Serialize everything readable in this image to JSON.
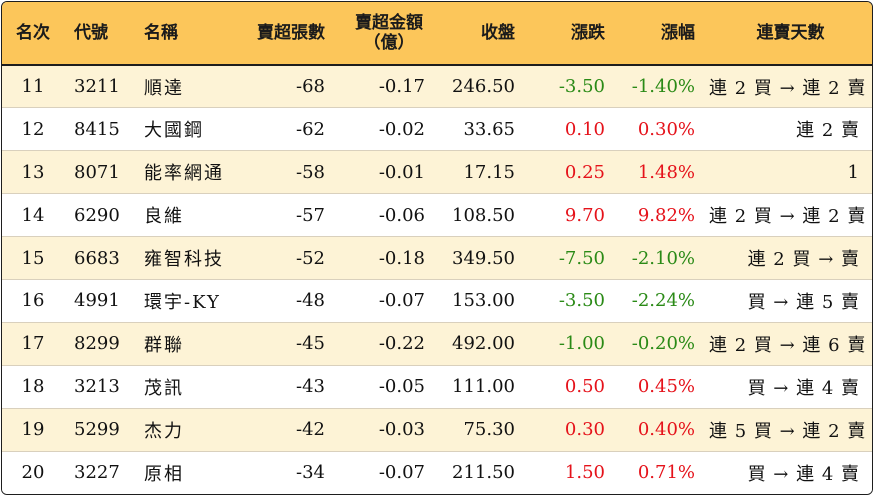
{
  "headers": {
    "rank": "名次",
    "code": "代號",
    "name": "名稱",
    "sell_lots": "賣超張數",
    "sell_amount_line1": "賣超金額",
    "sell_amount_line2": "（億）",
    "close": "收盤",
    "change": "漲跌",
    "change_pct": "漲幅",
    "streak": "連賣天數"
  },
  "colors": {
    "header_bg": "#fcc65a",
    "odd_row_bg": "#fdf3d6",
    "up": "#e5121a",
    "down": "#2a8a16"
  },
  "rows": [
    {
      "rank": "11",
      "code": "3211",
      "name": "順達",
      "sell_lots": "-68",
      "sell_amount": "-0.17",
      "close": "246.50",
      "change": "-3.50",
      "change_pct": "-1.40%",
      "dir": "down",
      "streak": "連 2 買 → 連 2 賣"
    },
    {
      "rank": "12",
      "code": "8415",
      "name": "大國鋼",
      "sell_lots": "-62",
      "sell_amount": "-0.02",
      "close": "33.65",
      "change": "0.10",
      "change_pct": "0.30%",
      "dir": "up",
      "streak": "連 2 賣"
    },
    {
      "rank": "13",
      "code": "8071",
      "name": "能率網通",
      "sell_lots": "-58",
      "sell_amount": "-0.01",
      "close": "17.15",
      "change": "0.25",
      "change_pct": "1.48%",
      "dir": "up",
      "streak": "1"
    },
    {
      "rank": "14",
      "code": "6290",
      "name": "良維",
      "sell_lots": "-57",
      "sell_amount": "-0.06",
      "close": "108.50",
      "change": "9.70",
      "change_pct": "9.82%",
      "dir": "up",
      "streak": "連 2 買 → 連 2 賣"
    },
    {
      "rank": "15",
      "code": "6683",
      "name": "雍智科技",
      "sell_lots": "-52",
      "sell_amount": "-0.18",
      "close": "349.50",
      "change": "-7.50",
      "change_pct": "-2.10%",
      "dir": "down",
      "streak": "連 2 買 → 賣"
    },
    {
      "rank": "16",
      "code": "4991",
      "name": "環宇-KY",
      "sell_lots": "-48",
      "sell_amount": "-0.07",
      "close": "153.00",
      "change": "-3.50",
      "change_pct": "-2.24%",
      "dir": "down",
      "streak": "買 → 連 5 賣"
    },
    {
      "rank": "17",
      "code": "8299",
      "name": "群聯",
      "sell_lots": "-45",
      "sell_amount": "-0.22",
      "close": "492.00",
      "change": "-1.00",
      "change_pct": "-0.20%",
      "dir": "down",
      "streak": "連 2 買 → 連 6 賣"
    },
    {
      "rank": "18",
      "code": "3213",
      "name": "茂訊",
      "sell_lots": "-43",
      "sell_amount": "-0.05",
      "close": "111.00",
      "change": "0.50",
      "change_pct": "0.45%",
      "dir": "up",
      "streak": "買 → 連 4 賣"
    },
    {
      "rank": "19",
      "code": "5299",
      "name": "杰力",
      "sell_lots": "-42",
      "sell_amount": "-0.03",
      "close": "75.30",
      "change": "0.30",
      "change_pct": "0.40%",
      "dir": "up",
      "streak": "連 5 買 → 連 2 賣"
    },
    {
      "rank": "20",
      "code": "3227",
      "name": "原相",
      "sell_lots": "-34",
      "sell_amount": "-0.07",
      "close": "211.50",
      "change": "1.50",
      "change_pct": "0.71%",
      "dir": "up",
      "streak": "買 → 連 4 賣"
    }
  ]
}
